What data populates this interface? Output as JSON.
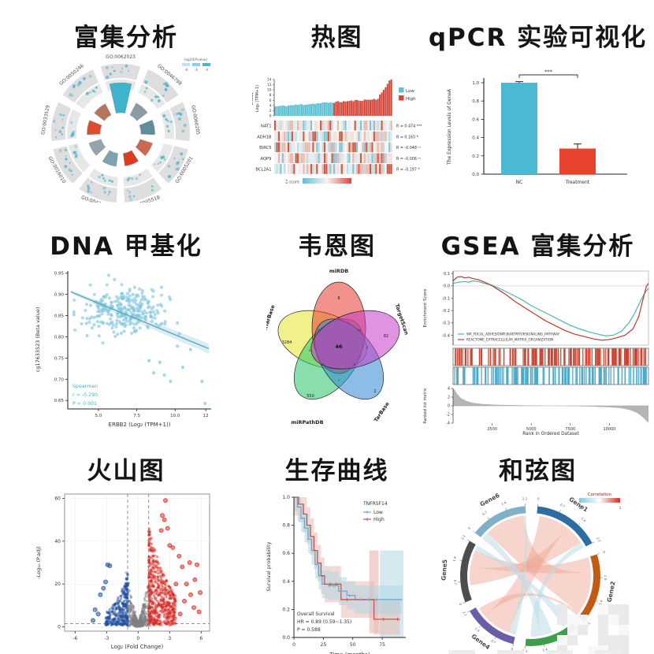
{
  "titles": {
    "enrichment": "富集分析",
    "heatmap": "热图",
    "qpcr": "qPCR 实验可视化",
    "methylation": "DNA 甲基化",
    "venn": "韦恩图",
    "gsea": "GSEA 富集分析",
    "volcano": "火山图",
    "survival": "生存曲线",
    "chord": "和弦图"
  },
  "chart_data": [
    {
      "id": "enrichment",
      "type": "circular-enrichment",
      "legend_label": "-log10(Pvalue)",
      "legend_ticks": [
        "-8",
        "-6",
        "-4"
      ],
      "legend_colors": [
        "#bfe3ec",
        "#8ccfdf",
        "#4ab5cf"
      ],
      "ring_color": "#dedede",
      "inner_ring_color": "#e7e7e7",
      "dot_color": "#49b3cc",
      "segments": [
        {
          "id": "GO:0062023",
          "color": "#3fb3cd",
          "extent": 1.0
        },
        {
          "id": "GO:0046798",
          "color": "#8b9aa3",
          "extent": 0.5
        },
        {
          "id": "GO:0060205",
          "color": "#5e8d9c",
          "extent": 0.55
        },
        {
          "id": "GO:0005201",
          "color": "#cd6a4e",
          "extent": 0.45
        },
        {
          "id": "GO:0005518",
          "color": "#df3b21",
          "extent": 0.4
        },
        {
          "id": "GO:0043062",
          "color": "#7da2b2",
          "extent": 0.45
        },
        {
          "id": "GO:0016010",
          "color": "#95a3ab",
          "extent": 0.4
        },
        {
          "id": "GO:0033529",
          "color": "#e04a2d",
          "extent": 0.45
        },
        {
          "id": "GO:0050246",
          "color": "#b5765c",
          "extent": 0.4
        }
      ]
    },
    {
      "id": "heatmap",
      "type": "heatmap",
      "axis_label_line1": "ERBB2",
      "axis_label_line2": "Log₂ (TPM+1)",
      "yticks": [
        0,
        2,
        4,
        6,
        8,
        10,
        12,
        14
      ],
      "legend": [
        {
          "label": "Low",
          "color": "#5fc0d4"
        },
        {
          "label": "High",
          "color": "#d6493a"
        }
      ],
      "rows": [
        {
          "gene": "NAT1",
          "r_label": "R = 0.474 ***"
        },
        {
          "gene": "ADH1B",
          "r_label": "R = 0.165 *"
        },
        {
          "gene": "BIRC5",
          "r_label": "R = -0.048 ⁿˢ"
        },
        {
          "gene": "AQP9",
          "r_label": "R = -0.006 ⁿˢ"
        },
        {
          "gene": "BCL2A1",
          "r_label": "R = -0.197 *"
        }
      ],
      "colorbar_label": "Z-score",
      "low_color": "#5fc0d4",
      "mid_color": "#f7f4f2",
      "high_color": "#d6493a",
      "n_cols": 62
    },
    {
      "id": "qpcr",
      "type": "bar",
      "ylabel": "The Expression Levels of GeneA",
      "yticks": [
        "0.0",
        "0.2",
        "0.4",
        "0.6",
        "0.8",
        "1.0"
      ],
      "ylim": [
        0,
        1.05
      ],
      "categories": [
        "NC",
        "Treatment"
      ],
      "values": [
        1.0,
        0.28
      ],
      "errors": [
        0.012,
        0.05
      ],
      "colors": [
        "#4cb9d2",
        "#e8432c"
      ],
      "significance": "***"
    },
    {
      "id": "methylation",
      "type": "scatter",
      "xlabel": "ERBB2 (Log₂ (TPM+1))",
      "ylabel": "cg17633523 (Beta value)",
      "xticks": [
        5.0,
        7.5,
        10.0,
        12
      ],
      "yticks": [
        "0.95",
        "0.90",
        "0.85",
        "0.80",
        "0.75",
        "0.70",
        "0.65"
      ],
      "xlim": [
        3,
        12.35
      ],
      "ylim": [
        0.63,
        0.955
      ],
      "point_color": "#82c8db",
      "trend": {
        "x1": 3.2,
        "y1": 0.906,
        "x2": 12.2,
        "y2": 0.772
      },
      "annotation": [
        "Spearman",
        "r = -0.290",
        "P < 0.001"
      ],
      "annotation_color": "#45b5cd",
      "n_points": 270,
      "center": [
        6.6,
        0.861
      ],
      "sd": [
        1.35,
        0.028
      ],
      "outliers": [
        [
          9.3,
          0.71
        ],
        [
          9.7,
          0.695
        ],
        [
          10.5,
          0.728
        ],
        [
          11.75,
          0.695
        ],
        [
          8.3,
          0.744
        ],
        [
          11.95,
          0.643
        ],
        [
          10.15,
          0.778
        ],
        [
          9.0,
          0.74
        ],
        [
          11.0,
          0.77
        ],
        [
          8.6,
          0.715
        ]
      ]
    },
    {
      "id": "venn",
      "type": "venn5",
      "sets": [
        {
          "name": "miRDB",
          "color": "#e8392f",
          "unique": "8",
          "angle": -90
        },
        {
          "name": "TargetScan",
          "color": "#c73ac7",
          "unique": "82",
          "angle": -18
        },
        {
          "name": "TarBase",
          "color": "#2f86d4",
          "unique": "2",
          "angle": 54
        },
        {
          "name": "miRPathDB",
          "color": "#27c46a",
          "unique": "550",
          "angle": 126
        },
        {
          "name": "miRTarBase",
          "color": "#e6e62e",
          "unique": "3284",
          "angle": 198
        }
      ],
      "center_count": "46",
      "minor_counts": [
        "5",
        "12",
        "3",
        "9",
        "21",
        "7",
        "4",
        "11"
      ]
    },
    {
      "id": "gsea",
      "type": "gsea",
      "es_ylabel": "Enrichment Score",
      "es_yticks": [
        "0.1",
        "0.0",
        "-0.1",
        "-0.2",
        "-0.3",
        "-0.4"
      ],
      "series": [
        {
          "name": "WP_FOCAL_ADHESIONPI3KAKTMTORSIGNALING_PATHWAY",
          "color": "#4db6ac"
        },
        {
          "name": "REACTOME_EXTRACELLULAR_MATRIX_ORGANIZATION",
          "color": "#c0392b"
        }
      ],
      "curves": {
        "teal": [
          [
            0,
            0.02
          ],
          [
            0.03,
            0.03
          ],
          [
            0.06,
            0.035
          ],
          [
            0.08,
            0.03
          ],
          [
            0.1,
            0.04
          ],
          [
            0.13,
            0.035
          ],
          [
            0.16,
            0.02
          ],
          [
            0.2,
            0.005
          ],
          [
            0.25,
            -0.03
          ],
          [
            0.3,
            -0.07
          ],
          [
            0.35,
            -0.11
          ],
          [
            0.4,
            -0.16
          ],
          [
            0.45,
            -0.2
          ],
          [
            0.5,
            -0.24
          ],
          [
            0.55,
            -0.28
          ],
          [
            0.6,
            -0.32
          ],
          [
            0.65,
            -0.35
          ],
          [
            0.7,
            -0.375
          ],
          [
            0.74,
            -0.39
          ],
          [
            0.78,
            -0.405
          ],
          [
            0.82,
            -0.4
          ],
          [
            0.86,
            -0.37
          ],
          [
            0.9,
            -0.3
          ],
          [
            0.93,
            -0.22
          ],
          [
            0.96,
            -0.12
          ],
          [
            0.98,
            -0.06
          ],
          [
            1.0,
            -0.02
          ]
        ],
        "red": [
          [
            0,
            0.04
          ],
          [
            0.02,
            0.07
          ],
          [
            0.04,
            0.075
          ],
          [
            0.06,
            0.065
          ],
          [
            0.08,
            0.07
          ],
          [
            0.1,
            0.06
          ],
          [
            0.13,
            0.05
          ],
          [
            0.16,
            0.03
          ],
          [
            0.19,
            0.01
          ],
          [
            0.22,
            -0.02
          ],
          [
            0.27,
            -0.07
          ],
          [
            0.32,
            -0.13
          ],
          [
            0.37,
            -0.18
          ],
          [
            0.42,
            -0.23
          ],
          [
            0.47,
            -0.28
          ],
          [
            0.52,
            -0.32
          ],
          [
            0.57,
            -0.36
          ],
          [
            0.62,
            -0.39
          ],
          [
            0.67,
            -0.41
          ],
          [
            0.72,
            -0.43
          ],
          [
            0.76,
            -0.44
          ],
          [
            0.8,
            -0.435
          ],
          [
            0.84,
            -0.42
          ],
          [
            0.88,
            -0.4
          ],
          [
            0.92,
            -0.35
          ],
          [
            0.95,
            -0.25
          ],
          [
            0.97,
            -0.12
          ],
          [
            0.99,
            0.0
          ],
          [
            1.0,
            0.02
          ]
        ]
      },
      "metric_curve": [
        [
          0,
          4
        ],
        [
          0.01,
          3.6
        ],
        [
          0.02,
          2.8
        ],
        [
          0.04,
          1.8
        ],
        [
          0.07,
          1.1
        ],
        [
          0.1,
          0.7
        ],
        [
          0.15,
          0.4
        ],
        [
          0.22,
          0.25
        ],
        [
          0.3,
          0.15
        ],
        [
          0.4,
          0.07
        ],
        [
          0.5,
          0
        ],
        [
          0.6,
          -0.07
        ],
        [
          0.7,
          -0.16
        ],
        [
          0.78,
          -0.3
        ],
        [
          0.85,
          -0.5
        ],
        [
          0.9,
          -0.9
        ],
        [
          0.94,
          -1.6
        ],
        [
          0.97,
          -2.6
        ],
        [
          1,
          -4
        ]
      ],
      "metric_ylabel": "Ranked list metric",
      "metric_yticks": [
        "4",
        "2",
        "0",
        "-2",
        "-4"
      ],
      "xlabel": "Rank in Ordered Dataset",
      "xticks": [
        2500,
        5000,
        7500,
        10000
      ],
      "xmax": 12500,
      "barcode_colors": [
        "#d0402c",
        "#4aa8c9"
      ]
    },
    {
      "id": "volcano",
      "type": "volcano",
      "xlabel": "Log₂ (Fold Change)",
      "ylabel": "-Log₁₀ (P.adj)",
      "xticks": [
        -6,
        -3,
        0,
        3,
        6
      ],
      "yticks": [
        0,
        20,
        40,
        60
      ],
      "xlim": [
        -7,
        6.8
      ],
      "ylim": [
        -2,
        62
      ],
      "vlines": [
        -1,
        1
      ],
      "hline": 1.5,
      "colors": {
        "up": "#d7261f",
        "down": "#1f4fa0",
        "ns": "#7f7f7f"
      },
      "red_outliers": [
        [
          2.6,
          59
        ],
        [
          2.3,
          52
        ],
        [
          2.5,
          50
        ],
        [
          2.8,
          46
        ],
        [
          2.2,
          45
        ],
        [
          3.0,
          38
        ],
        [
          3.3,
          37
        ],
        [
          3.9,
          33
        ],
        [
          4.9,
          30
        ],
        [
          5.6,
          29
        ],
        [
          4.2,
          28
        ],
        [
          3.6,
          20
        ],
        [
          4.6,
          20
        ],
        [
          5.9,
          16
        ],
        [
          5.0,
          15
        ],
        [
          5.3,
          9
        ],
        [
          5.8,
          7
        ],
        [
          4.0,
          6
        ],
        [
          5.4,
          22
        ],
        [
          4.4,
          12
        ]
      ],
      "blue_outliers": [
        [
          -2.9,
          29
        ],
        [
          -2.7,
          28.5
        ],
        [
          -3.6,
          15
        ],
        [
          -4.1,
          8
        ],
        [
          -3.8,
          6
        ],
        [
          -4.3,
          3
        ],
        [
          -3.3,
          18
        ],
        [
          -3.1,
          21
        ]
      ]
    },
    {
      "id": "survival",
      "type": "km",
      "xlabel": "Time (months)",
      "ylabel": "Survival probability",
      "xticks": [
        0,
        25,
        50,
        75
      ],
      "yticks": [
        "1.0",
        "0.8",
        "0.6",
        "0.4",
        "0.2",
        "0.0"
      ],
      "legend_title": "TNFRSF14",
      "groups": [
        {
          "name": "Low",
          "color": "#6ea6c9",
          "band": "#aad6e2"
        },
        {
          "name": "High",
          "color": "#c0574f",
          "band": "#eab4ad"
        }
      ],
      "annotation": [
        "Overall Survival",
        "HR = 0.89 (0.59~1.35)",
        "P = 0.588"
      ],
      "steps_low": [
        [
          0,
          1.0
        ],
        [
          3,
          0.93
        ],
        [
          6,
          0.85
        ],
        [
          9,
          0.78
        ],
        [
          12,
          0.7
        ],
        [
          15,
          0.62
        ],
        [
          18,
          0.52
        ],
        [
          21,
          0.44
        ],
        [
          24,
          0.38
        ],
        [
          30,
          0.37
        ],
        [
          38,
          0.33
        ],
        [
          45,
          0.3
        ],
        [
          52,
          0.27
        ],
        [
          92,
          0.27
        ]
      ],
      "steps_high": [
        [
          0,
          1.0
        ],
        [
          4,
          0.95
        ],
        [
          8,
          0.88
        ],
        [
          11,
          0.8
        ],
        [
          14,
          0.72
        ],
        [
          17,
          0.62
        ],
        [
          20,
          0.53
        ],
        [
          23,
          0.44
        ],
        [
          26,
          0.38
        ],
        [
          34,
          0.38
        ],
        [
          40,
          0.27
        ],
        [
          67,
          0.27
        ],
        [
          68,
          0.13
        ],
        [
          90,
          0.13
        ]
      ],
      "censor_low": [
        [
          30,
          0.37
        ],
        [
          34,
          0.37
        ],
        [
          40,
          0.33
        ],
        [
          47,
          0.3
        ],
        [
          57,
          0.27
        ],
        [
          63,
          0.27
        ],
        [
          70,
          0.27
        ]
      ],
      "censor_high": [
        [
          31,
          0.38
        ],
        [
          36,
          0.38
        ],
        [
          45,
          0.27
        ],
        [
          76,
          0.13
        ],
        [
          88,
          0.13
        ]
      ]
    },
    {
      "id": "chord",
      "type": "chord",
      "legend_label": "Correlation",
      "legend_min": "-1",
      "legend_max": "1",
      "axis_ticks": [
        "0",
        "0.7",
        "1.4",
        "2.1"
      ],
      "genes": [
        {
          "name": "Gene1",
          "color": "#2e6da4",
          "arc": [
            -84,
            -28
          ]
        },
        {
          "name": "Gene2",
          "color": "#c45911",
          "arc": [
            -18,
            40
          ]
        },
        {
          "name": "Gene3",
          "color": "#3f9e4d",
          "arc": [
            48,
            94
          ]
        },
        {
          "name": "Gene4",
          "color": "#6b5ea8",
          "arc": [
            104,
            150
          ]
        },
        {
          "name": "Gene5",
          "color": "#4d4d4d",
          "arc": [
            158,
            210
          ]
        },
        {
          "name": "Gene6",
          "color": "#7fafc9",
          "arc": [
            218,
            266
          ]
        }
      ],
      "ribbon_pos_color": "#eda18f",
      "ribbon_neg_color": "#bcdde8",
      "ribbons": [
        [
          5,
          0.15,
          0.95,
          1,
          0.25,
          0.95,
          "p"
        ],
        [
          0,
          0.05,
          0.55,
          3,
          0.15,
          0.75,
          "p"
        ],
        [
          0,
          0.55,
          0.9,
          4,
          0.25,
          0.6,
          "p"
        ],
        [
          1,
          0.0,
          0.25,
          4,
          0.6,
          0.9,
          "p"
        ],
        [
          5,
          0.0,
          0.15,
          2,
          0.45,
          0.7,
          "n"
        ],
        [
          0,
          0.9,
          1.0,
          2,
          0.7,
          0.9,
          "n"
        ],
        [
          3,
          0.75,
          0.95,
          1,
          0.95,
          1.0,
          "p"
        ],
        [
          4,
          0.9,
          1.0,
          2,
          0.0,
          0.2,
          "n"
        ],
        [
          5,
          0.95,
          1.0,
          3,
          0.0,
          0.15,
          "n"
        ]
      ]
    }
  ]
}
